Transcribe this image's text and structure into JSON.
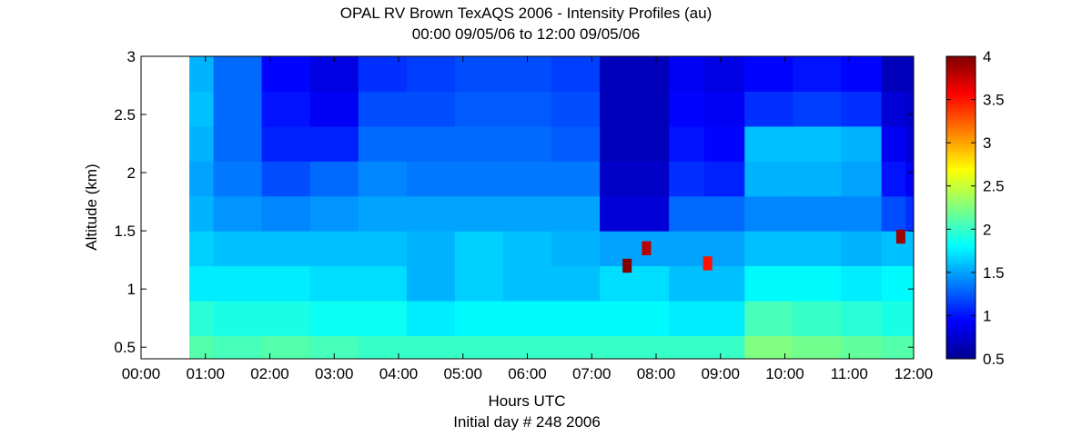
{
  "chart_data": {
    "type": "heatmap",
    "title": "OPAL RV Brown TexAQS 2006 - Intensity Profiles (au)",
    "subtitle": "00:00 09/05/06 to 12:00 09/05/06",
    "xlabel": "Hours UTC",
    "xlabel2": "Initial day # 248  2006",
    "ylabel": "Altitude (km)",
    "xlim": [
      0,
      12
    ],
    "ylim": [
      0.4,
      3.0
    ],
    "x_ticks": [
      "00:00",
      "01:00",
      "02:00",
      "03:00",
      "04:00",
      "05:00",
      "06:00",
      "07:00",
      "08:00",
      "09:00",
      "10:00",
      "11:00",
      "12:00"
    ],
    "y_ticks": [
      "0.5",
      "1",
      "1.5",
      "2",
      "2.5",
      "3"
    ],
    "y_tick_values": [
      0.5,
      1.0,
      1.5,
      2.0,
      2.5,
      3.0
    ],
    "colorbar": {
      "range": [
        0.5,
        4.0
      ],
      "ticks": [
        "0.5",
        "1",
        "1.5",
        "2",
        "2.5",
        "3",
        "3.5",
        "4"
      ],
      "tick_values": [
        0.5,
        1.0,
        1.5,
        2.0,
        2.5,
        3.0,
        3.5,
        4.0
      ],
      "colormap": "jet"
    },
    "data_start_hour": 0.75,
    "altitudes_km": [
      0.45,
      0.75,
      1.05,
      1.35,
      1.65,
      1.95,
      2.25,
      2.55,
      2.85
    ],
    "time_hours": [
      0.75,
      1.5,
      2.25,
      3.0,
      3.75,
      4.5,
      5.25,
      6.0,
      6.75,
      7.5,
      7.9,
      8.5,
      9.0,
      9.75,
      10.5,
      11.25,
      11.75,
      12.0
    ],
    "intensity": [
      [
        2.1,
        1.95,
        1.75,
        1.65,
        1.55,
        1.5,
        1.55,
        1.6,
        1.55
      ],
      [
        2.05,
        1.9,
        1.75,
        1.6,
        1.45,
        1.35,
        1.3,
        1.3,
        1.3
      ],
      [
        2.1,
        1.9,
        1.75,
        1.6,
        1.4,
        1.2,
        1.05,
        1.0,
        0.95
      ],
      [
        2.05,
        1.85,
        1.7,
        1.6,
        1.45,
        1.3,
        1.05,
        0.9,
        0.85
      ],
      [
        2.0,
        1.85,
        1.7,
        1.6,
        1.5,
        1.4,
        1.3,
        1.2,
        1.1
      ],
      [
        2.0,
        1.75,
        1.55,
        1.55,
        1.5,
        1.35,
        1.3,
        1.2,
        1.15
      ],
      [
        2.0,
        1.8,
        1.65,
        1.65,
        1.5,
        1.35,
        1.3,
        1.25,
        1.2
      ],
      [
        2.0,
        1.8,
        1.6,
        1.6,
        1.5,
        1.35,
        1.3,
        1.25,
        1.2
      ],
      [
        2.0,
        1.8,
        1.6,
        1.55,
        1.5,
        1.35,
        1.25,
        1.2,
        1.15
      ],
      [
        2.0,
        1.8,
        1.7,
        1.5,
        0.8,
        0.75,
        0.7,
        0.7,
        0.7
      ],
      [
        2.0,
        1.8,
        1.7,
        1.5,
        0.8,
        0.75,
        0.7,
        0.7,
        0.7
      ],
      [
        2.0,
        1.75,
        1.6,
        1.5,
        1.3,
        1.1,
        1.0,
        0.95,
        0.9
      ],
      [
        2.0,
        1.75,
        1.6,
        1.5,
        1.3,
        1.05,
        0.95,
        0.9,
        0.85
      ],
      [
        2.25,
        2.05,
        1.8,
        1.6,
        1.4,
        1.55,
        1.6,
        1.1,
        0.95
      ],
      [
        2.2,
        2.0,
        1.8,
        1.6,
        1.4,
        1.55,
        1.6,
        1.15,
        1.0
      ],
      [
        2.15,
        1.95,
        1.75,
        1.55,
        1.4,
        1.5,
        1.55,
        1.1,
        0.95
      ],
      [
        2.1,
        1.9,
        1.8,
        1.6,
        1.2,
        1.0,
        0.9,
        0.8,
        0.7
      ],
      [
        2.1,
        1.9,
        1.8,
        1.6,
        1.1,
        0.9,
        0.8,
        0.75,
        0.7
      ]
    ],
    "high_intensity_spots": [
      {
        "hour": 7.55,
        "alt_km": 1.2,
        "value": 4.0
      },
      {
        "hour": 7.85,
        "alt_km": 1.35,
        "value": 3.8
      },
      {
        "hour": 8.8,
        "alt_km": 1.22,
        "value": 3.5
      },
      {
        "hour": 11.8,
        "alt_km": 1.45,
        "value": 3.9
      }
    ]
  }
}
